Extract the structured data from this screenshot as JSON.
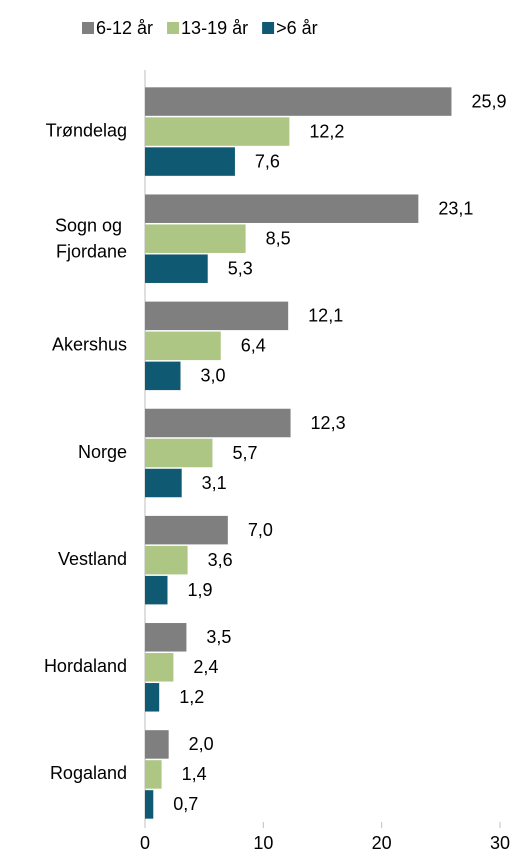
{
  "chart_data": {
    "type": "hbar",
    "categories": [
      "Trøndelag",
      "Sogn og Fjordane",
      "Akershus",
      "Norge",
      "Vestland",
      "Hordaland",
      "Rogaland"
    ],
    "series": [
      {
        "name": "6-12 år",
        "color": "#7f7f7f",
        "values": [
          25.9,
          23.1,
          12.1,
          12.3,
          7.0,
          3.5,
          2.0
        ],
        "value_labels": [
          "25,9",
          "23,1",
          "12,1",
          "12,3",
          "7,0",
          "3,5",
          "2,0"
        ]
      },
      {
        "name": "13-19 år",
        "color": "#adc684",
        "values": [
          12.2,
          8.5,
          6.4,
          5.7,
          3.6,
          2.4,
          1.4
        ],
        "value_labels": [
          "12,2",
          "8,5",
          "6,4",
          "5,7",
          "3,6",
          "2,4",
          "1,4"
        ]
      },
      {
        "name": ">6 år",
        "color": "#0f5a72",
        "values": [
          7.6,
          5.3,
          3.0,
          3.1,
          1.9,
          1.2,
          0.7
        ],
        "value_labels": [
          "7,6",
          "5,3",
          "3,0",
          "3,1",
          "1,9",
          "1,2",
          "0,7"
        ]
      }
    ],
    "xlim": [
      0,
      30
    ],
    "xticks": [
      0,
      10,
      20,
      30
    ],
    "legend": "top"
  }
}
